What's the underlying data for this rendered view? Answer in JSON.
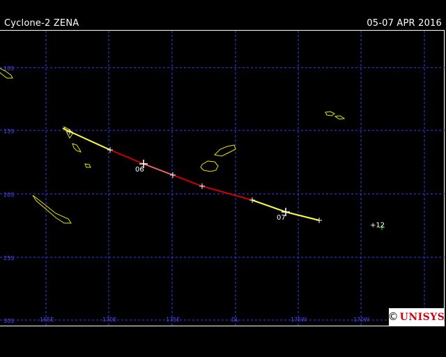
{
  "title": {
    "left": "Cyclone-2 ZENA",
    "right": "05-07 APR 2016"
  },
  "grid_labels": {
    "latitude": [
      "10S",
      "15S",
      "20S",
      "25S",
      "30S"
    ],
    "longitude": [
      "165E",
      "170E",
      "175E",
      "DL",
      "175W",
      "170W"
    ]
  },
  "track_point_labels": [
    "06",
    "07",
    "+12"
  ],
  "logo": {
    "symbol": "©",
    "text": "UNISYS"
  },
  "colors": {
    "background": "#000000",
    "grid": "#3c3cff",
    "coast": "#e6e600",
    "track_depression": "#ffff44",
    "track_storm": "#cc0000",
    "track_storm_light": "#ff6060",
    "forecast": "#33cc33",
    "logo_text": "#d00010"
  }
}
